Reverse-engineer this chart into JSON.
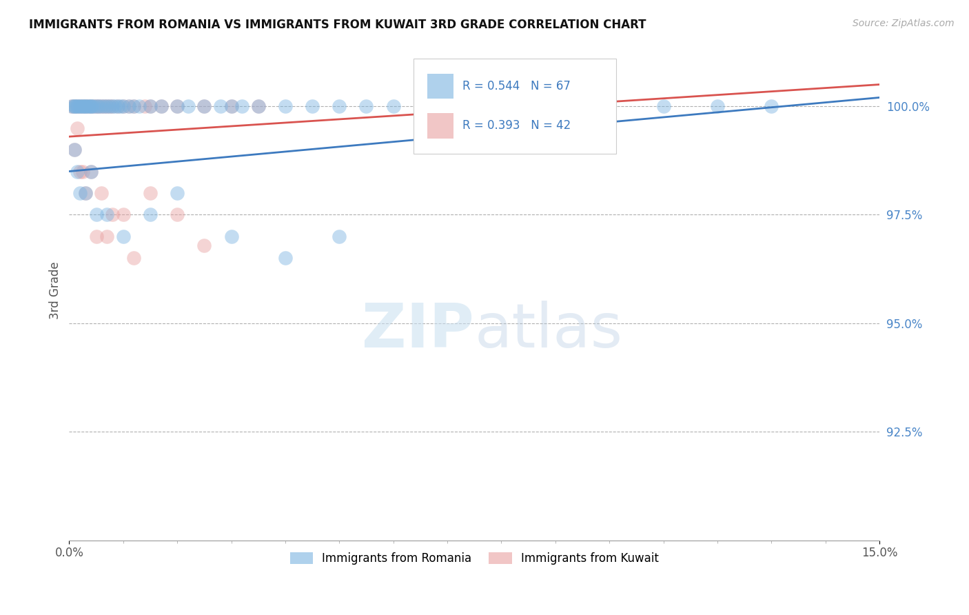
{
  "title": "IMMIGRANTS FROM ROMANIA VS IMMIGRANTS FROM KUWAIT 3RD GRADE CORRELATION CHART",
  "source_text": "Source: ZipAtlas.com",
  "ylabel": "3rd Grade",
  "xlim": [
    0.0,
    15.0
  ],
  "ylim": [
    90.0,
    101.5
  ],
  "x_ticks": [
    0.0,
    15.0
  ],
  "x_tick_labels": [
    "0.0%",
    "15.0%"
  ],
  "y_ticks": [
    92.5,
    95.0,
    97.5,
    100.0
  ],
  "y_tick_labels": [
    "92.5%",
    "95.0%",
    "97.5%",
    "100.0%"
  ],
  "romania_color": "#7ab3e0",
  "kuwait_color": "#e8a0a0",
  "romania_line_color": "#3d7abf",
  "kuwait_line_color": "#d9534f",
  "romania_R": 0.544,
  "romania_N": 67,
  "kuwait_R": 0.393,
  "kuwait_N": 42,
  "legend_romania": "Immigrants from Romania",
  "legend_kuwait": "Immigrants from Kuwait",
  "romania_x": [
    0.05,
    0.08,
    0.1,
    0.12,
    0.15,
    0.18,
    0.2,
    0.22,
    0.25,
    0.28,
    0.3,
    0.32,
    0.35,
    0.38,
    0.4,
    0.42,
    0.45,
    0.5,
    0.55,
    0.6,
    0.65,
    0.7,
    0.75,
    0.8,
    0.85,
    0.9,
    0.95,
    1.0,
    1.1,
    1.2,
    1.3,
    1.5,
    1.7,
    2.0,
    2.2,
    2.5,
    2.8,
    3.0,
    3.2,
    3.5,
    4.0,
    4.5,
    5.0,
    5.5,
    6.0,
    6.5,
    7.0,
    7.5,
    8.0,
    9.0,
    10.0,
    11.0,
    12.0,
    13.0,
    0.1,
    0.15,
    0.2,
    0.3,
    0.4,
    0.5,
    0.7,
    1.0,
    1.5,
    2.0,
    3.0,
    4.0,
    5.0
  ],
  "romania_y": [
    100.0,
    100.0,
    100.0,
    100.0,
    100.0,
    100.0,
    100.0,
    100.0,
    100.0,
    100.0,
    100.0,
    100.0,
    100.0,
    100.0,
    100.0,
    100.0,
    100.0,
    100.0,
    100.0,
    100.0,
    100.0,
    100.0,
    100.0,
    100.0,
    100.0,
    100.0,
    100.0,
    100.0,
    100.0,
    100.0,
    100.0,
    100.0,
    100.0,
    100.0,
    100.0,
    100.0,
    100.0,
    100.0,
    100.0,
    100.0,
    100.0,
    100.0,
    100.0,
    100.0,
    100.0,
    100.0,
    100.0,
    100.0,
    100.0,
    100.0,
    100.0,
    100.0,
    100.0,
    100.0,
    99.0,
    98.5,
    98.0,
    98.0,
    98.5,
    97.5,
    97.5,
    97.0,
    97.5,
    98.0,
    97.0,
    96.5,
    97.0
  ],
  "kuwait_x": [
    0.05,
    0.1,
    0.15,
    0.2,
    0.25,
    0.3,
    0.35,
    0.4,
    0.45,
    0.5,
    0.55,
    0.6,
    0.65,
    0.7,
    0.75,
    0.8,
    0.9,
    1.0,
    1.1,
    1.2,
    1.4,
    1.5,
    1.7,
    2.0,
    2.5,
    3.0,
    3.5,
    0.1,
    0.2,
    0.3,
    0.4,
    0.6,
    0.8,
    1.0,
    1.5,
    2.0,
    0.15,
    0.25,
    0.5,
    0.7,
    1.2,
    2.5
  ],
  "kuwait_y": [
    100.0,
    100.0,
    100.0,
    100.0,
    100.0,
    100.0,
    100.0,
    100.0,
    100.0,
    100.0,
    100.0,
    100.0,
    100.0,
    100.0,
    100.0,
    100.0,
    100.0,
    100.0,
    100.0,
    100.0,
    100.0,
    100.0,
    100.0,
    100.0,
    100.0,
    100.0,
    100.0,
    99.0,
    98.5,
    98.0,
    98.5,
    98.0,
    97.5,
    97.5,
    98.0,
    97.5,
    99.5,
    98.5,
    97.0,
    97.0,
    96.5,
    96.8
  ],
  "rom_trendline_x0": 0.0,
  "rom_trendline_y0": 98.5,
  "rom_trendline_x1": 15.0,
  "rom_trendline_y1": 100.2,
  "kuw_trendline_x0": 0.0,
  "kuw_trendline_y0": 99.3,
  "kuw_trendline_x1": 15.0,
  "kuw_trendline_y1": 100.5
}
